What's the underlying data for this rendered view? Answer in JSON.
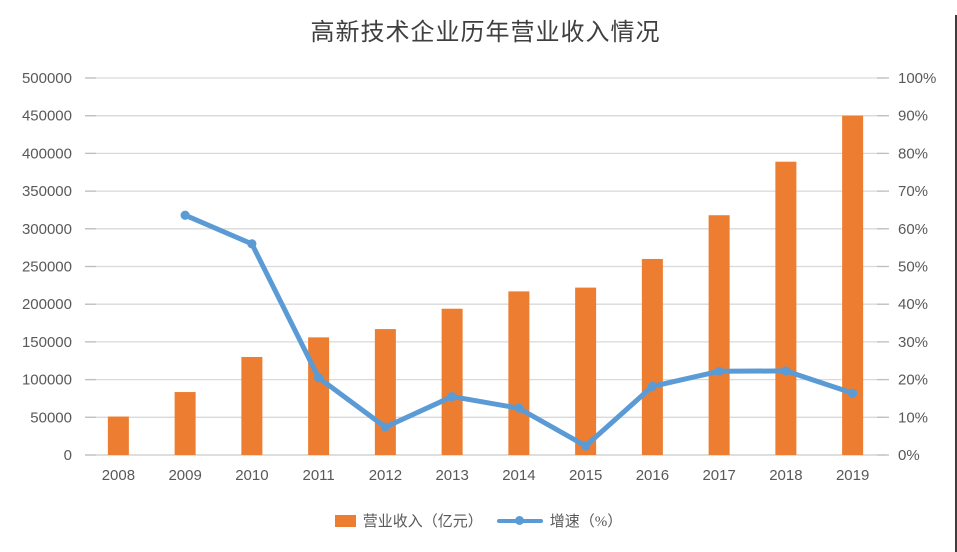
{
  "chart_data": {
    "type": "combo",
    "title": "高新技术企业历年营业收入情况",
    "categories": [
      "2008",
      "2009",
      "2010",
      "2011",
      "2012",
      "2013",
      "2014",
      "2015",
      "2016",
      "2017",
      "2018",
      "2019"
    ],
    "series": [
      {
        "name": "营业收入（亿元）",
        "type": "bar",
        "axis": "left",
        "color": "#ED7D31",
        "values": [
          51000,
          83500,
          130000,
          156000,
          167000,
          194000,
          217000,
          222000,
          260000,
          318000,
          389000,
          450000
        ]
      },
      {
        "name": "增速（%）",
        "type": "line",
        "axis": "right",
        "color": "#5B9BD5",
        "values": [
          null,
          63.6,
          56.0,
          20.5,
          7.4,
          15.5,
          12.4,
          2.4,
          18.2,
          22.2,
          22.3,
          16.4
        ]
      }
    ],
    "left_axis": {
      "min": 0,
      "max": 500000,
      "step": 50000,
      "tick_labels": [
        "0",
        "50000",
        "100000",
        "150000",
        "200000",
        "250000",
        "300000",
        "350000",
        "400000",
        "450000",
        "500000"
      ]
    },
    "right_axis": {
      "min": 0,
      "max": 100,
      "step": 10,
      "tick_labels": [
        "0%",
        "10%",
        "20%",
        "30%",
        "40%",
        "50%",
        "60%",
        "70%",
        "80%",
        "90%",
        "100%"
      ]
    },
    "grid": true,
    "grid_color": "#D9D9D9",
    "axis_line_color": "#C9C9C9",
    "tick_color": "#BFBFBF",
    "axis_text_color": "#595959",
    "legend_position": "bottom"
  }
}
